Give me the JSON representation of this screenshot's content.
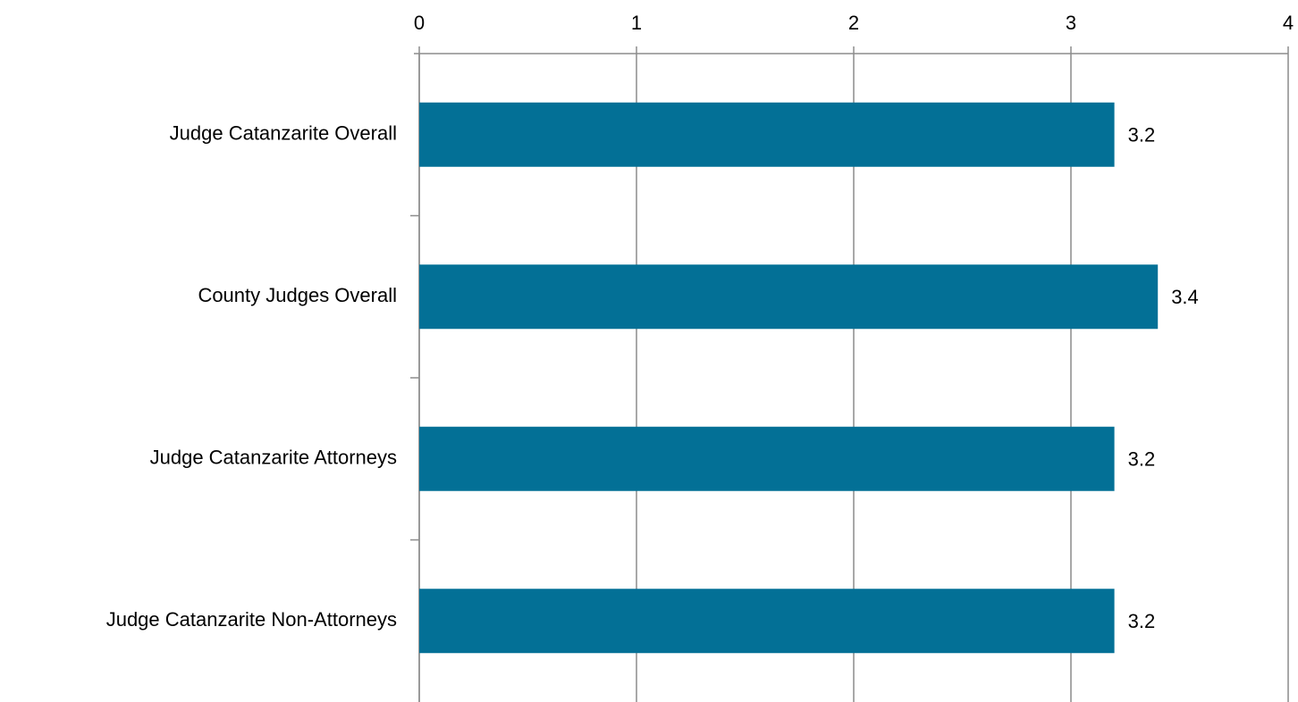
{
  "chart_data": {
    "type": "bar",
    "orientation": "horizontal",
    "categories": [
      "Judge Catanzarite Overall",
      "County Judges Overall",
      "Judge Catanzarite Attorneys",
      "Judge Catanzarite Non-Attorneys"
    ],
    "values": [
      3.2,
      3.4,
      3.2,
      3.2
    ],
    "color": "#037096",
    "xlim": [
      0,
      4
    ],
    "xticks": [
      0,
      1,
      2,
      3,
      4
    ],
    "grid": true
  }
}
